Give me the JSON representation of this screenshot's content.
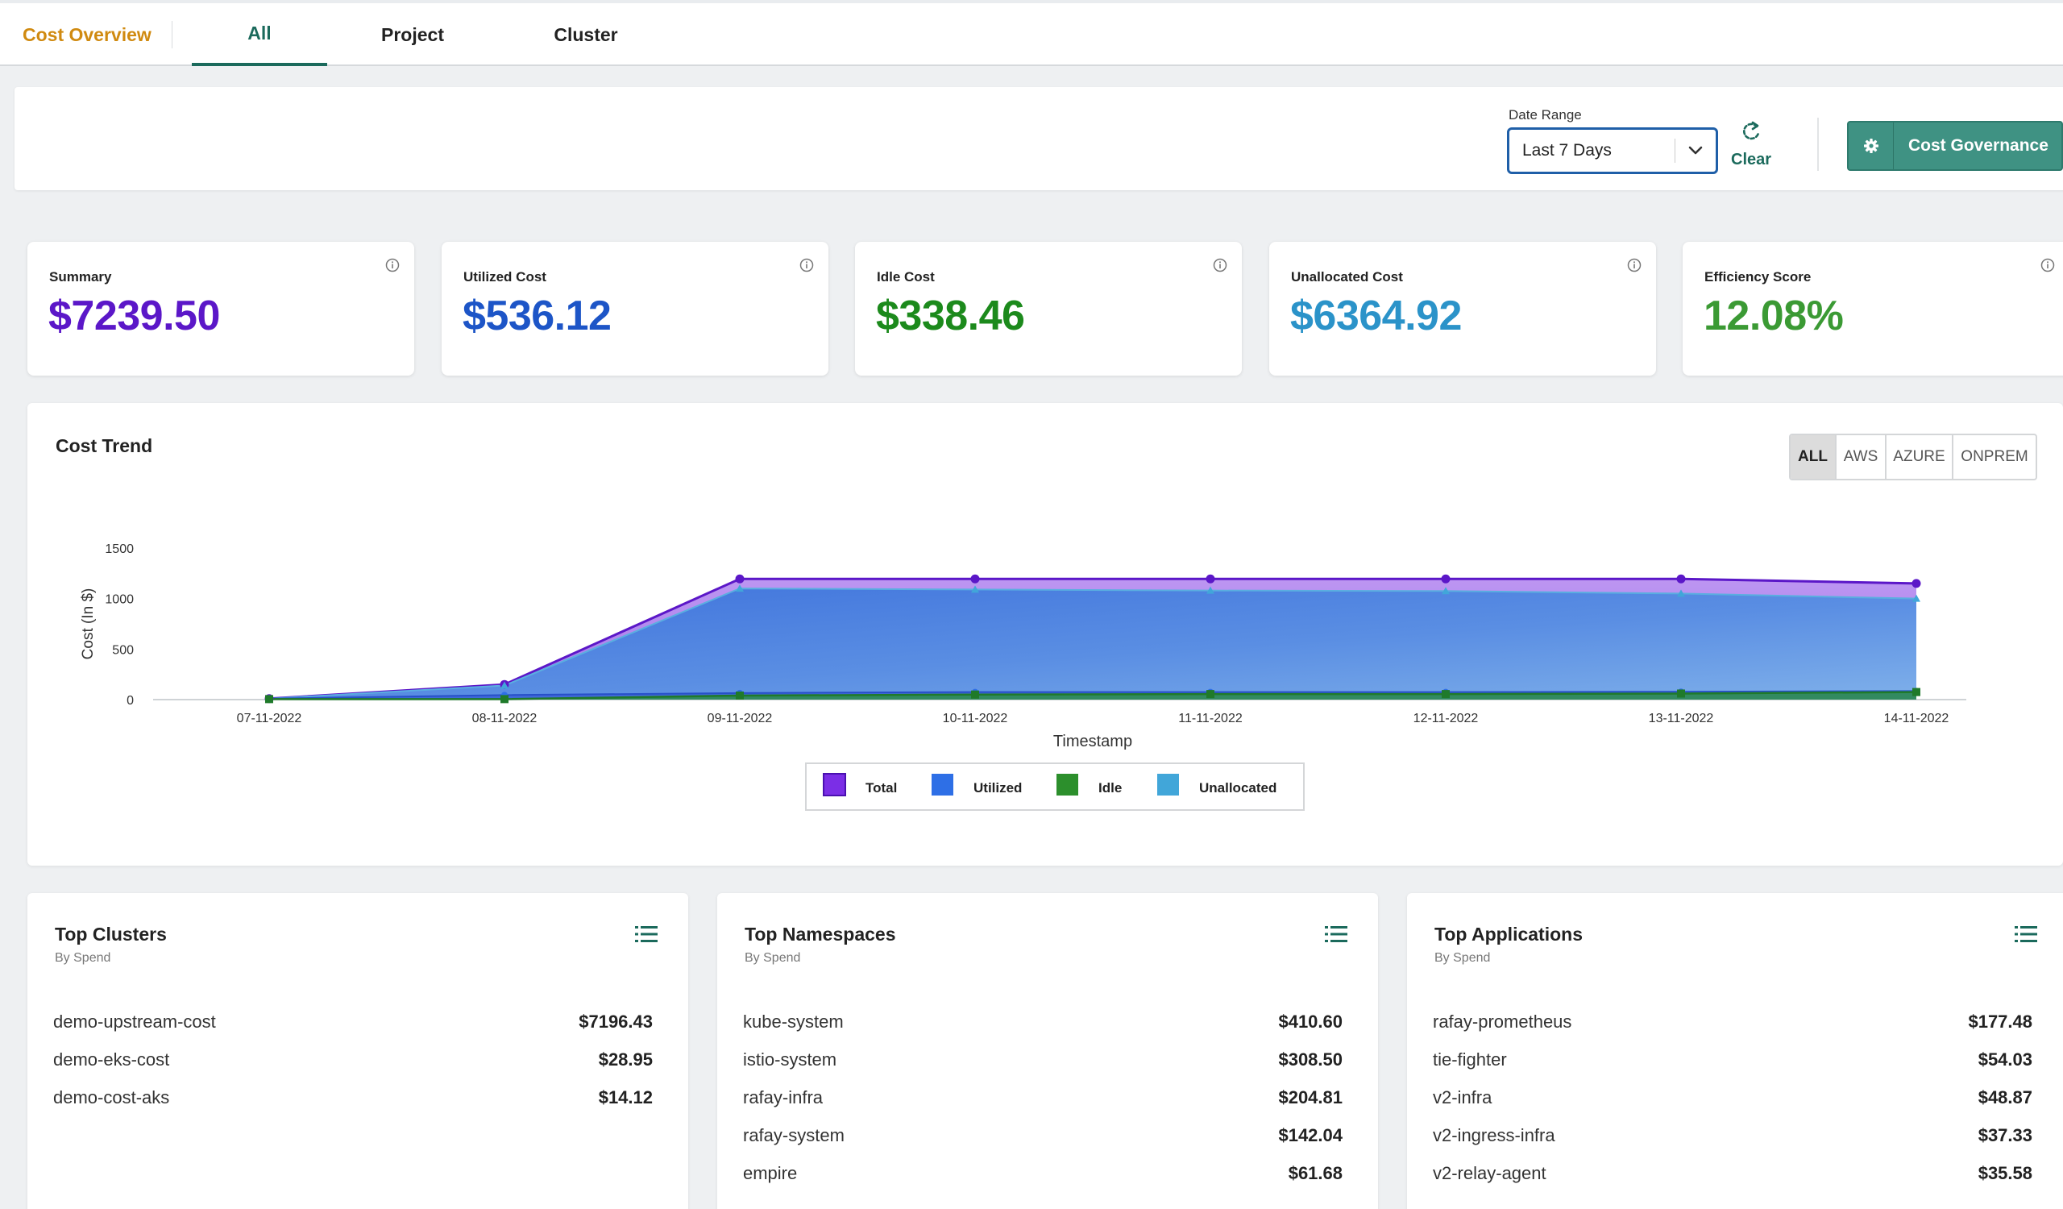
{
  "nav": {
    "brand": "Cost Overview",
    "tabs": [
      {
        "label": "All",
        "active": true
      },
      {
        "label": "Project",
        "active": false
      },
      {
        "label": "Cluster",
        "active": false
      }
    ]
  },
  "filters": {
    "date_range_label": "Date Range",
    "date_range_value": "Last 7 Days",
    "clear_label": "Clear",
    "governance_label": "Cost Governance"
  },
  "kpis": [
    {
      "title": "Summary",
      "value": "$7239.50",
      "color": "#5b17c8"
    },
    {
      "title": "Utilized Cost",
      "value": "$536.12",
      "color": "#1d55c7"
    },
    {
      "title": "Idle Cost",
      "value": "$338.46",
      "color": "#1c8a1c"
    },
    {
      "title": "Unallocated Cost",
      "value": "$6364.92",
      "color": "#2b93c9"
    },
    {
      "title": "Efficiency Score",
      "value": "12.08%",
      "color": "#3b9a34"
    }
  ],
  "cost_trend": {
    "title": "Cost Trend",
    "cloud_filters": [
      "ALL",
      "AWS",
      "AZURE",
      "ONPREM"
    ],
    "active_cloud": "ALL"
  },
  "chart_data": {
    "type": "area",
    "x": [
      "07-11-2022",
      "08-11-2022",
      "09-11-2022",
      "10-11-2022",
      "11-11-2022",
      "12-11-2022",
      "13-11-2022",
      "14-11-2022"
    ],
    "xlabel": "Timestamp",
    "ylabel": "Cost (In $)",
    "yticks": [
      0,
      500,
      1000,
      1500
    ],
    "ylim": [
      0,
      1500
    ],
    "legend_position": "bottom",
    "series": [
      {
        "name": "Total",
        "color": "#7b2ee6",
        "values": [
          10,
          150,
          1195,
          1195,
          1195,
          1195,
          1195,
          1150
        ]
      },
      {
        "name": "Utilized",
        "color": "#2e6fe6",
        "values": [
          10,
          45,
          65,
          75,
          75,
          75,
          78,
          85
        ]
      },
      {
        "name": "Idle",
        "color": "#2c8f2c",
        "values": [
          5,
          5,
          40,
          50,
          55,
          55,
          60,
          75
        ]
      },
      {
        "name": "Unallocated",
        "color": "#41a6d9",
        "values": [
          10,
          140,
          1100,
          1090,
          1080,
          1075,
          1050,
          1000
        ]
      }
    ]
  },
  "lists": [
    {
      "title": "Top Clusters",
      "subtitle": "By Spend",
      "rows": [
        {
          "name": "demo-upstream-cost",
          "amount": "$7196.43"
        },
        {
          "name": "demo-eks-cost",
          "amount": "$28.95"
        },
        {
          "name": "demo-cost-aks",
          "amount": "$14.12"
        }
      ]
    },
    {
      "title": "Top Namespaces",
      "subtitle": "By Spend",
      "rows": [
        {
          "name": "kube-system",
          "amount": "$410.60"
        },
        {
          "name": "istio-system",
          "amount": "$308.50"
        },
        {
          "name": "rafay-infra",
          "amount": "$204.81"
        },
        {
          "name": "rafay-system",
          "amount": "$142.04"
        },
        {
          "name": "empire",
          "amount": "$61.68"
        }
      ]
    },
    {
      "title": "Top Applications",
      "subtitle": "By Spend",
      "rows": [
        {
          "name": "rafay-prometheus",
          "amount": "$177.48"
        },
        {
          "name": "tie-fighter",
          "amount": "$54.03"
        },
        {
          "name": "v2-infra",
          "amount": "$48.87"
        },
        {
          "name": "v2-ingress-infra",
          "amount": "$37.33"
        },
        {
          "name": "v2-relay-agent",
          "amount": "$35.58"
        }
      ]
    }
  ]
}
